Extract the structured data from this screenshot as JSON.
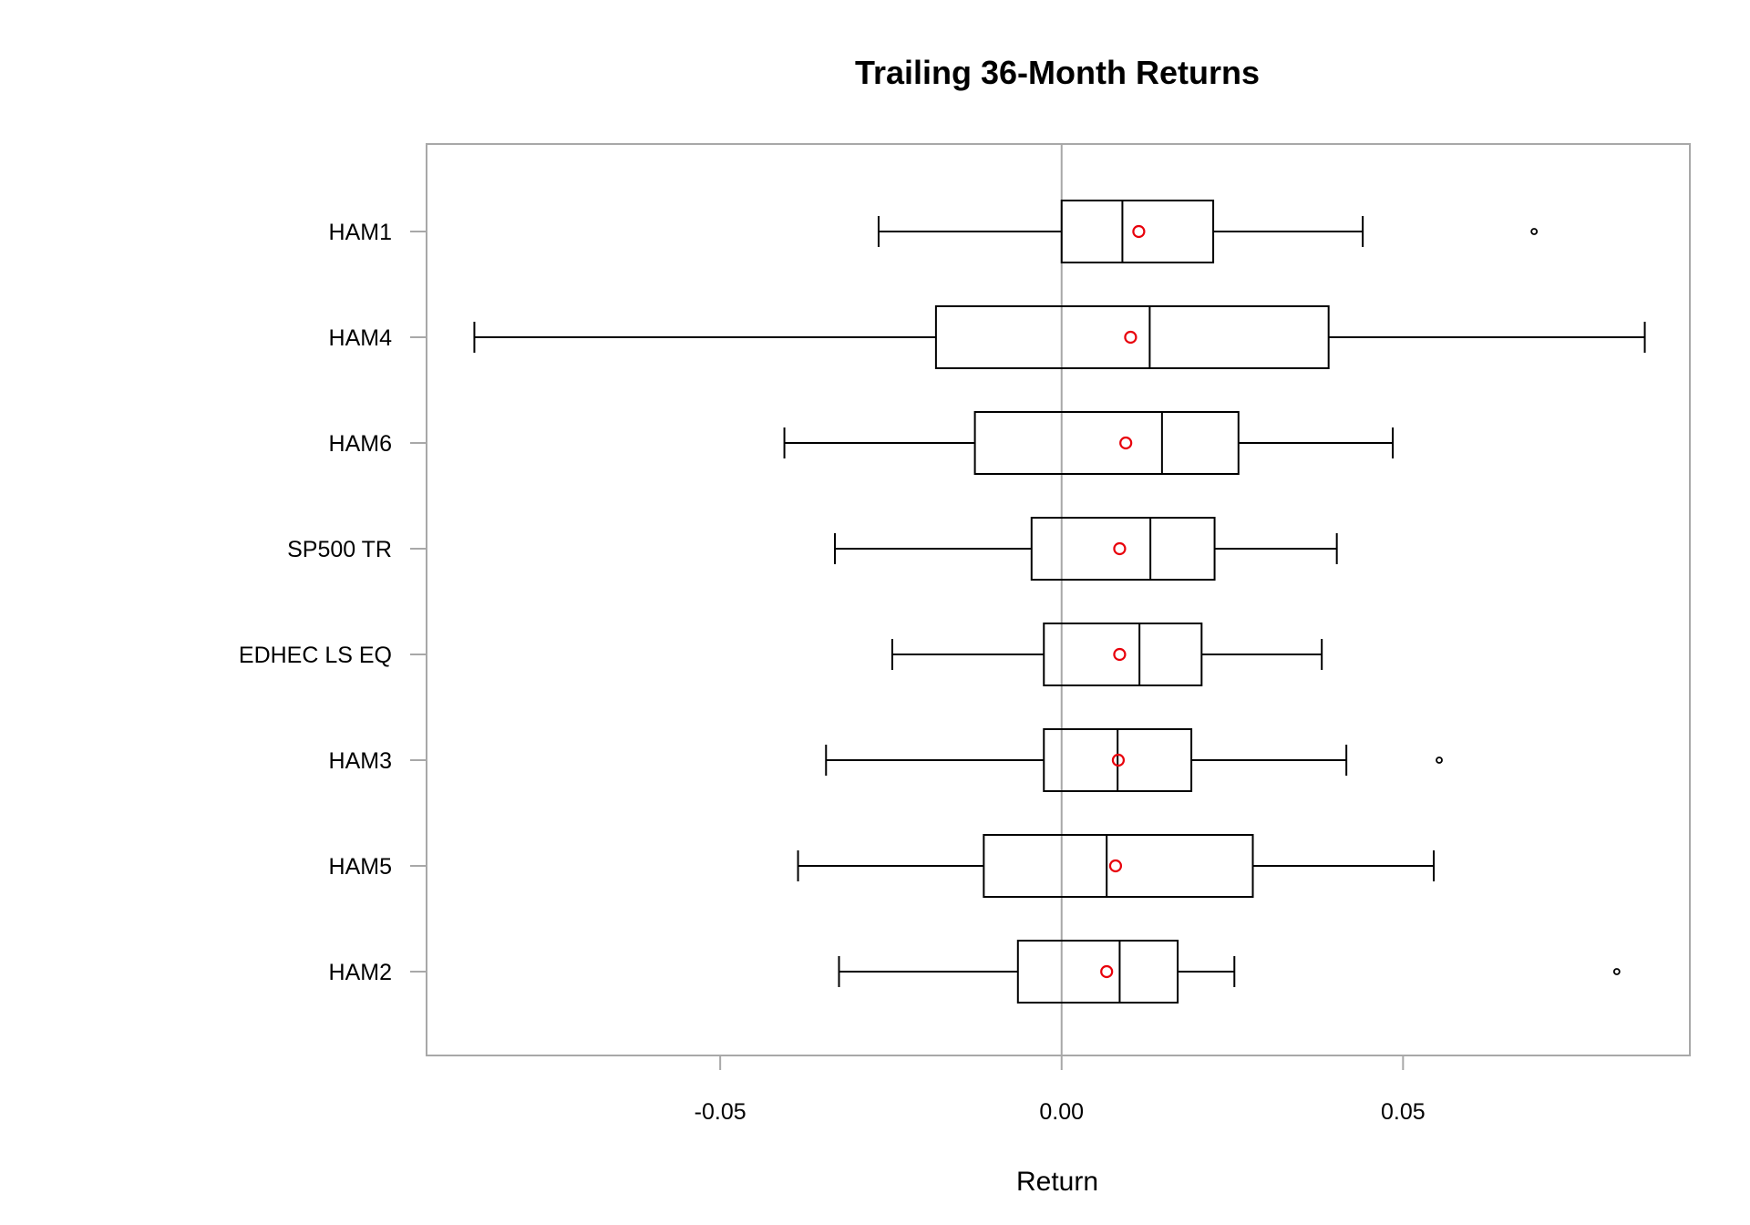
{
  "chart_data": {
    "type": "boxplot",
    "orientation": "horizontal",
    "title": "Trailing 36-Month Returns",
    "xlabel": "Return",
    "ylabel": "",
    "xlim": [
      -0.093,
      0.092
    ],
    "xticks": [
      -0.05,
      0.0,
      0.05
    ],
    "xtick_labels": [
      "-0.05",
      "0.00",
      "0.05"
    ],
    "grid": false,
    "zero_line": true,
    "colors": {
      "box": "#000000",
      "mean_marker": "#e8000b",
      "zero_line": "#a8a8a8",
      "frame": "#a8a8a8"
    },
    "categories": [
      "HAM1",
      "HAM4",
      "HAM6",
      "SP500 TR",
      "EDHEC LS EQ",
      "HAM3",
      "HAM5",
      "HAM2"
    ],
    "series": [
      {
        "name": "HAM1",
        "whisker_low": -0.0268,
        "q1": 0.0,
        "median": 0.0089,
        "q3": 0.0222,
        "whisker_high": 0.0441,
        "mean": 0.0113,
        "outliers": [
          0.0692
        ]
      },
      {
        "name": "HAM4",
        "whisker_low": -0.086,
        "q1": -0.0184,
        "median": 0.0129,
        "q3": 0.0391,
        "whisker_high": 0.0854,
        "mean": 0.0101,
        "outliers": []
      },
      {
        "name": "HAM6",
        "whisker_low": -0.0406,
        "q1": -0.0127,
        "median": 0.0147,
        "q3": 0.0259,
        "whisker_high": 0.0485,
        "mean": 0.0094,
        "outliers": []
      },
      {
        "name": "SP500 TR",
        "whisker_low": -0.0332,
        "q1": -0.0044,
        "median": 0.013,
        "q3": 0.0224,
        "whisker_high": 0.0403,
        "mean": 0.0085,
        "outliers": []
      },
      {
        "name": "EDHEC LS EQ",
        "whisker_low": -0.0248,
        "q1": -0.0026,
        "median": 0.0114,
        "q3": 0.0205,
        "whisker_high": 0.0381,
        "mean": 0.0085,
        "outliers": []
      },
      {
        "name": "HAM3",
        "whisker_low": -0.0345,
        "q1": -0.0026,
        "median": 0.0082,
        "q3": 0.019,
        "whisker_high": 0.0417,
        "mean": 0.0083,
        "outliers": [
          0.0553
        ]
      },
      {
        "name": "HAM5",
        "whisker_low": -0.0386,
        "q1": -0.0114,
        "median": 0.0066,
        "q3": 0.028,
        "whisker_high": 0.0545,
        "mean": 0.0079,
        "outliers": []
      },
      {
        "name": "HAM2",
        "whisker_low": -0.0326,
        "q1": -0.0064,
        "median": 0.0085,
        "q3": 0.017,
        "whisker_high": 0.0253,
        "mean": 0.0066,
        "outliers": [
          0.0813
        ]
      }
    ]
  }
}
